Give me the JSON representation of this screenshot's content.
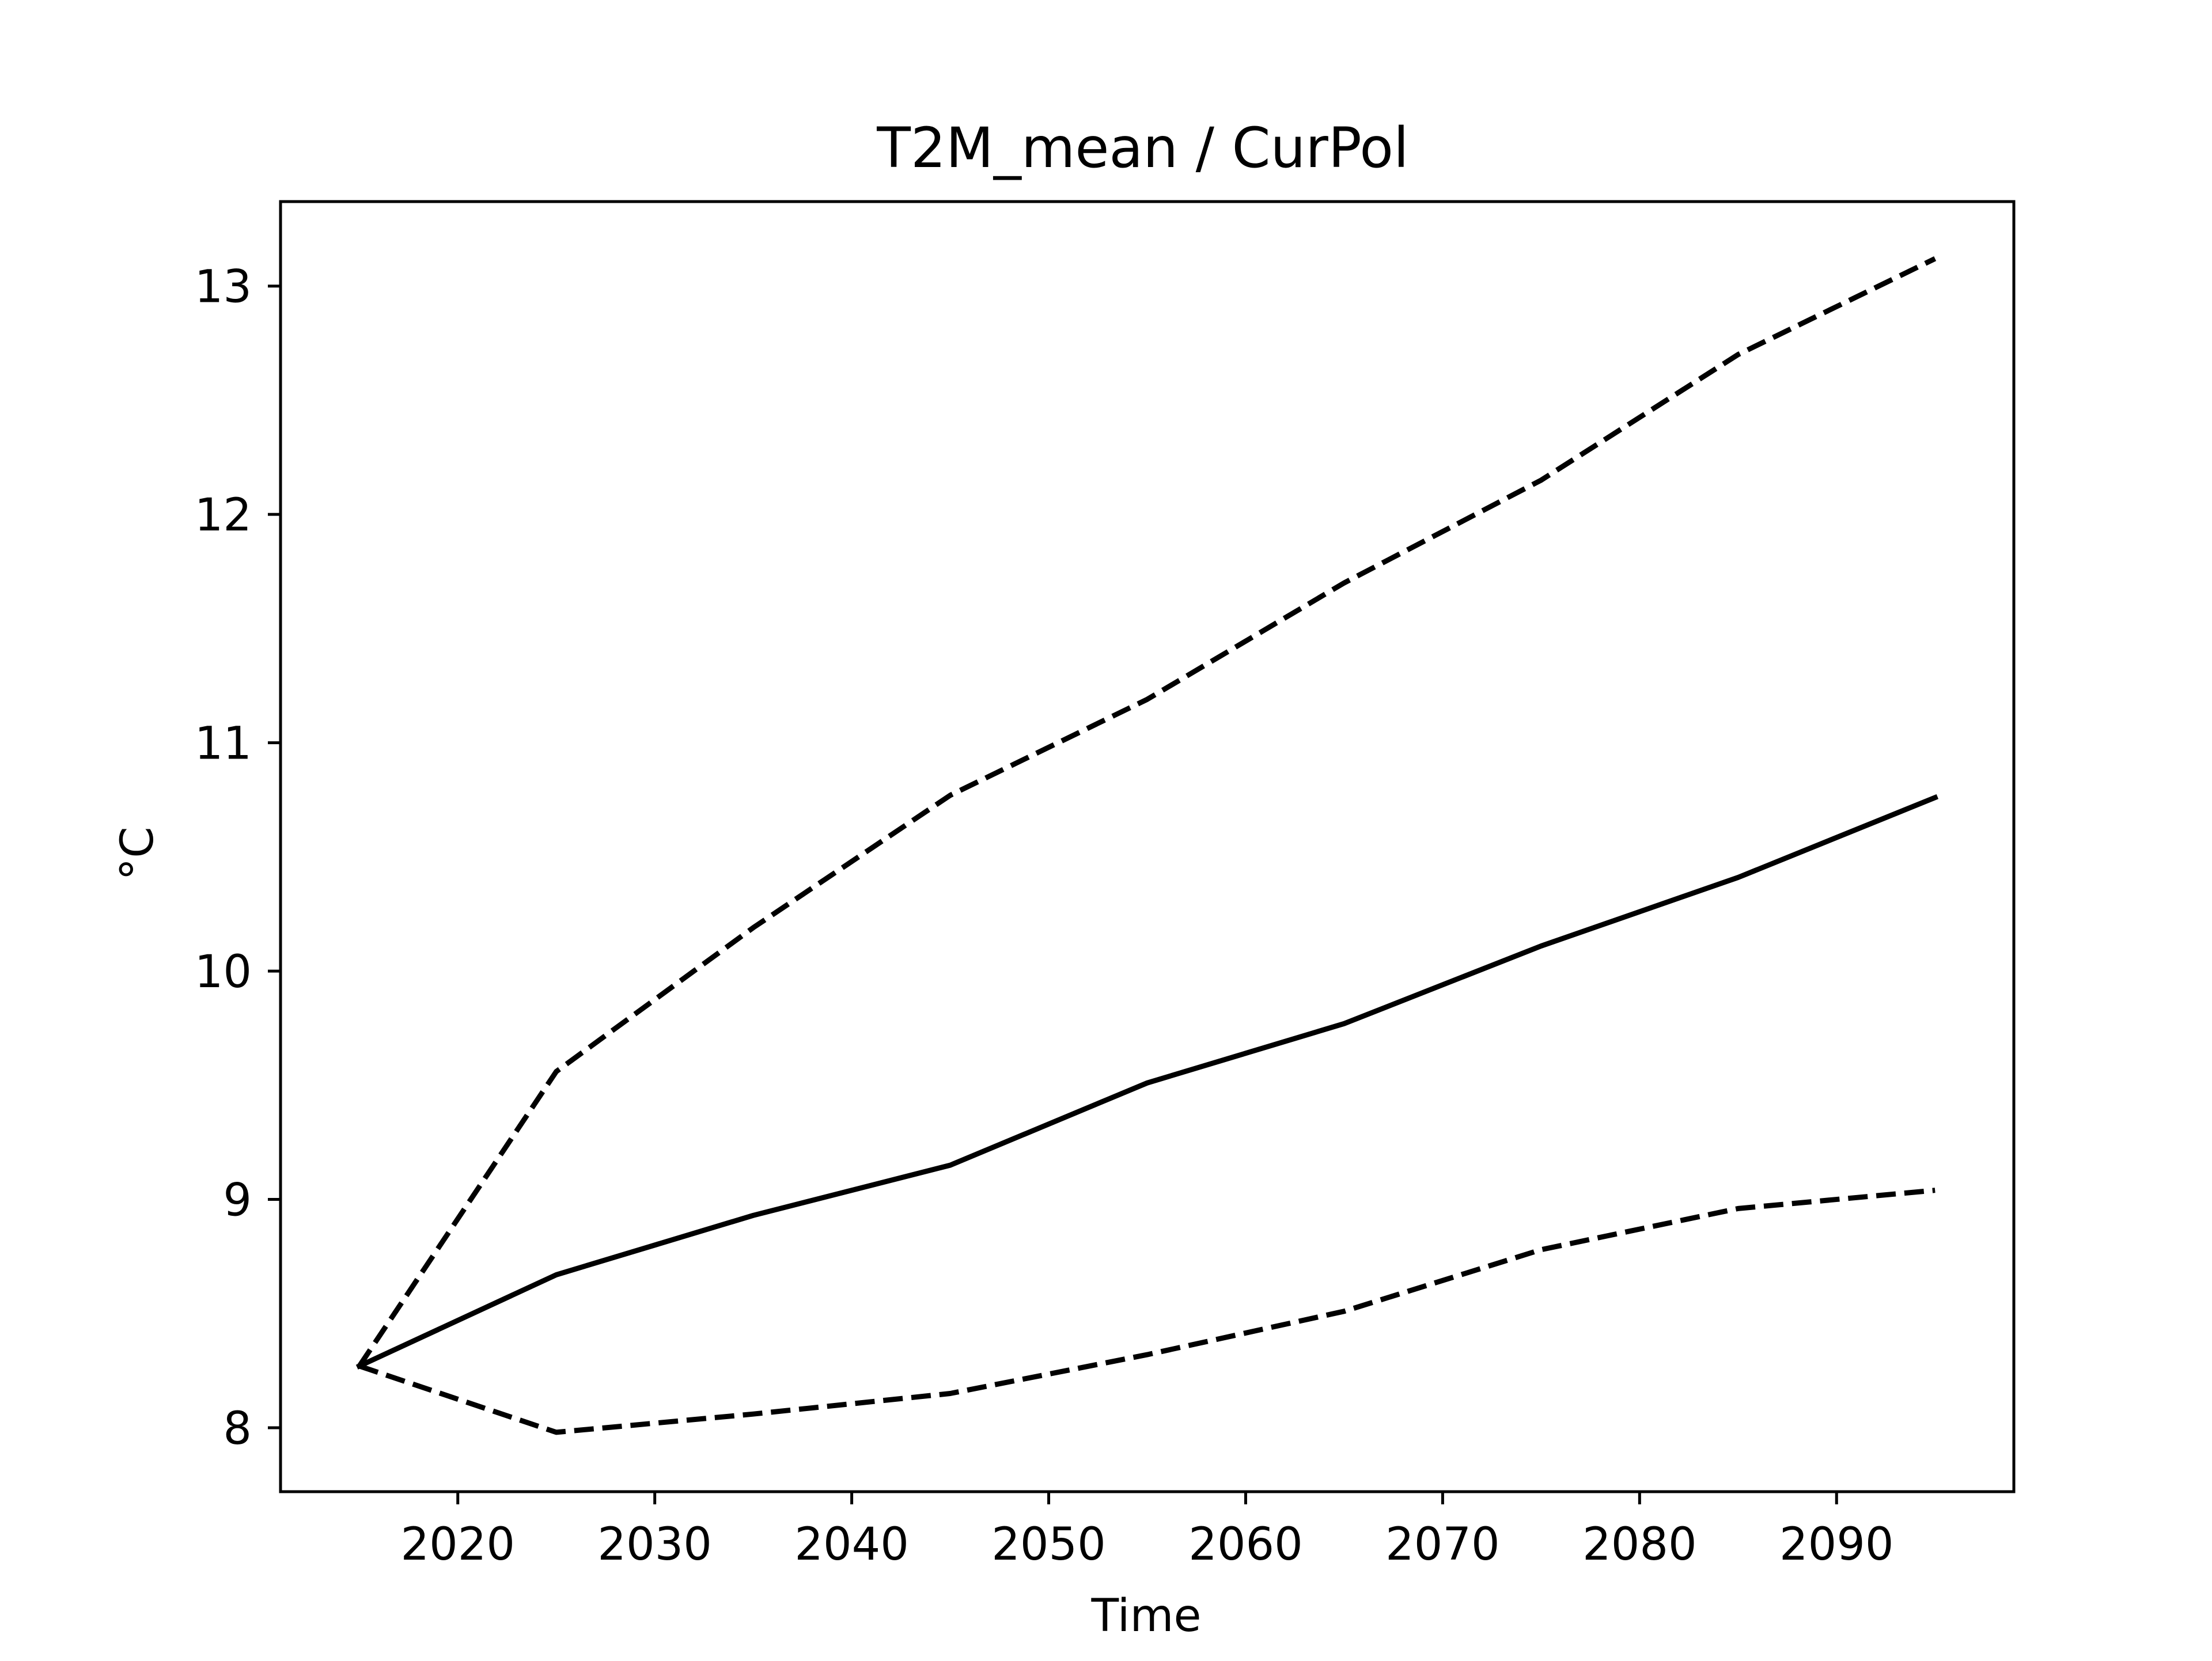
{
  "chart_data": {
    "type": "line",
    "title": "T2M_mean / CurPol",
    "xlabel": "Time",
    "ylabel": "°C",
    "xlim": [
      2011,
      2099
    ],
    "ylim": [
      7.72,
      13.37
    ],
    "x_ticks": [
      2020,
      2030,
      2040,
      2050,
      2060,
      2070,
      2080,
      2090
    ],
    "y_ticks": [
      8,
      9,
      10,
      11,
      12,
      13
    ],
    "grid": false,
    "legend": "none",
    "x": [
      2015,
      2025,
      2035,
      2045,
      2055,
      2065,
      2075,
      2085,
      2095
    ],
    "series": [
      {
        "style": "solid",
        "color": "#000000",
        "values": [
          8.27,
          8.67,
          8.93,
          9.15,
          9.51,
          9.77,
          10.11,
          10.41,
          10.76
        ]
      },
      {
        "style": "dashed",
        "color": "#000000",
        "values": [
          8.27,
          9.56,
          10.19,
          10.77,
          11.19,
          11.7,
          12.15,
          12.7,
          13.12
        ]
      },
      {
        "style": "dashed",
        "color": "#000000",
        "values": [
          8.27,
          7.98,
          8.06,
          8.15,
          8.32,
          8.51,
          8.78,
          8.96,
          9.04
        ]
      }
    ]
  }
}
